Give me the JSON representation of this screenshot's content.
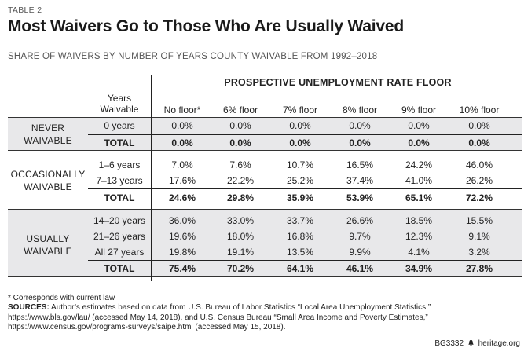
{
  "table_label": "TABLE 2",
  "title": "Most Waivers Go to Those Who Are Usually Waived",
  "subtitle": "SHARE OF WAIVERS BY NUMBER OF YEARS COUNTY WAIVABLE FROM 1992–2018",
  "superheader": "PROSPECTIVE UNEMPLOYMENT RATE FLOOR",
  "years_header_line1": "Years",
  "years_header_line2": "Waivable",
  "columns": [
    "No floor*",
    "6% floor",
    "7% floor",
    "8% floor",
    "9% floor",
    "10% floor"
  ],
  "groups": [
    {
      "label_line1": "NEVER",
      "label_line2": "WAIVABLE",
      "rows": [
        {
          "label": "0 years",
          "values": [
            "0.0%",
            "0.0%",
            "0.0%",
            "0.0%",
            "0.0%",
            "0.0%"
          ]
        }
      ],
      "total": {
        "label": "TOTAL",
        "values": [
          "0.0%",
          "0.0%",
          "0.0%",
          "0.0%",
          "0.0%",
          "0.0%"
        ]
      }
    },
    {
      "label_line1": "OCCASIONALLY",
      "label_line2": "WAIVABLE",
      "rows": [
        {
          "label": "1–6 years",
          "values": [
            "7.0%",
            "7.6%",
            "10.7%",
            "16.5%",
            "24.2%",
            "46.0%"
          ]
        },
        {
          "label": "7–13 years",
          "values": [
            "17.6%",
            "22.2%",
            "25.2%",
            "37.4%",
            "41.0%",
            "26.2%"
          ]
        }
      ],
      "total": {
        "label": "TOTAL",
        "values": [
          "24.6%",
          "29.8%",
          "35.9%",
          "53.9%",
          "65.1%",
          "72.2%"
        ]
      }
    },
    {
      "label_line1": "USUALLY",
      "label_line2": "WAIVABLE",
      "rows": [
        {
          "label": "14–20 years",
          "values": [
            "36.0%",
            "33.0%",
            "33.7%",
            "26.6%",
            "18.5%",
            "15.5%"
          ]
        },
        {
          "label": "21–26 years",
          "values": [
            "19.6%",
            "18.0%",
            "16.8%",
            "9.7%",
            "12.3%",
            "9.1%"
          ]
        },
        {
          "label": "All 27 years",
          "values": [
            "19.8%",
            "19.1%",
            "13.5%",
            "9.9%",
            "4.1%",
            "3.2%"
          ]
        }
      ],
      "total": {
        "label": "TOTAL",
        "values": [
          "75.4%",
          "70.2%",
          "64.1%",
          "46.1%",
          "34.9%",
          "27.8%"
        ]
      }
    }
  ],
  "footnote": "* Corresponds with current law",
  "sources_label": "SOURCES:",
  "sources_text": "Author’s estimates based on data from U.S. Bureau of Labor Statistics “Local Area Unemployment Statistics,” https://www.bls.gov/lau/ (accessed May 14, 2018), and U.S. Census Bureau “Small Area Income and Poverty Estimates,” https://www.census.gov/programs-surveys/saipe.html (accessed May 15, 2018).",
  "report_id": "BG3332",
  "site": "heritage.org",
  "colors": {
    "band": "#e8e8ea",
    "text": "#222222"
  }
}
